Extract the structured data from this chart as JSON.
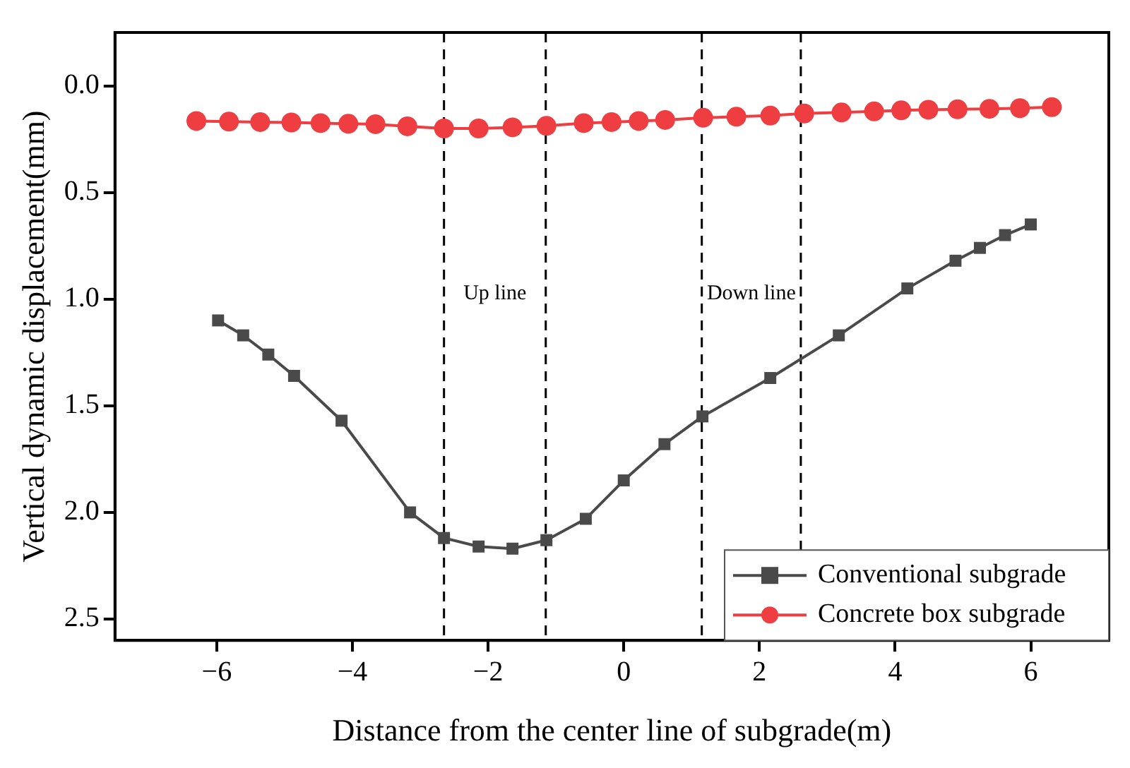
{
  "chart_data": {
    "type": "line",
    "xlabel": "Distance from the center line of subgrade(m)",
    "ylabel": "Vertical dynamic displacement(mm)",
    "xlim": [
      -7.5,
      7.15
    ],
    "xticks": [
      {
        "value": -6,
        "label": "−6"
      },
      {
        "value": -4,
        "label": "−4"
      },
      {
        "value": -2,
        "label": "−2"
      },
      0,
      2,
      4,
      6
    ],
    "ylim": [
      2.6,
      -0.25
    ],
    "yticks": [
      {
        "value": 0,
        "label": "0.0"
      },
      0.5,
      {
        "value": 1,
        "label": "1.0"
      },
      1.5,
      {
        "value": 2,
        "label": "2.0"
      },
      2.5
    ],
    "grid": false,
    "legend": "bottom right",
    "line_style": "solid",
    "series": [
      {
        "name": "Conventional subgrade",
        "color": "#4a4a4a",
        "marker": "square",
        "x": [
          -5.98,
          -5.61,
          -5.24,
          -4.86,
          -4.16,
          -3.15,
          -2.65,
          -2.14,
          -1.64,
          -1.14,
          -0.56,
          0.0,
          0.6,
          1.16,
          2.16,
          3.17,
          4.18,
          4.89,
          5.25,
          5.62,
          6.0
        ],
        "values": [
          1.1,
          1.17,
          1.26,
          1.36,
          1.57,
          2.0,
          2.12,
          2.16,
          2.17,
          2.13,
          2.03,
          1.85,
          1.68,
          1.55,
          1.37,
          1.17,
          0.95,
          0.82,
          0.76,
          0.7,
          0.65
        ]
      },
      {
        "name": "Concrete box subgrade",
        "color": "#ef3e42",
        "marker": "circle",
        "x": [
          -6.3,
          -5.82,
          -5.36,
          -4.9,
          -4.47,
          -4.06,
          -3.66,
          -3.19,
          -2.65,
          -2.14,
          -1.64,
          -1.14,
          -0.59,
          -0.18,
          0.22,
          0.61,
          1.17,
          1.66,
          2.16,
          2.66,
          3.21,
          3.69,
          4.09,
          4.49,
          4.92,
          5.39,
          5.84,
          6.31
        ],
        "values": [
          0.165,
          0.168,
          0.17,
          0.172,
          0.175,
          0.178,
          0.18,
          0.19,
          0.2,
          0.2,
          0.195,
          0.188,
          0.175,
          0.17,
          0.165,
          0.16,
          0.15,
          0.145,
          0.14,
          0.13,
          0.125,
          0.12,
          0.115,
          0.112,
          0.11,
          0.108,
          0.105,
          0.1
        ]
      }
    ],
    "ref_lines": [
      {
        "axis": "x",
        "value": -2.65,
        "color": "#000000",
        "line_style": "dashed"
      },
      {
        "axis": "x",
        "value": -1.15,
        "color": "#000000",
        "line_style": "dashed"
      },
      {
        "axis": "x",
        "value": 1.15,
        "color": "#000000",
        "line_style": "dashed"
      },
      {
        "axis": "x",
        "value": 2.61,
        "color": "#000000",
        "line_style": "dashed"
      }
    ],
    "annotations": [
      "Up line",
      "Down line"
    ]
  }
}
